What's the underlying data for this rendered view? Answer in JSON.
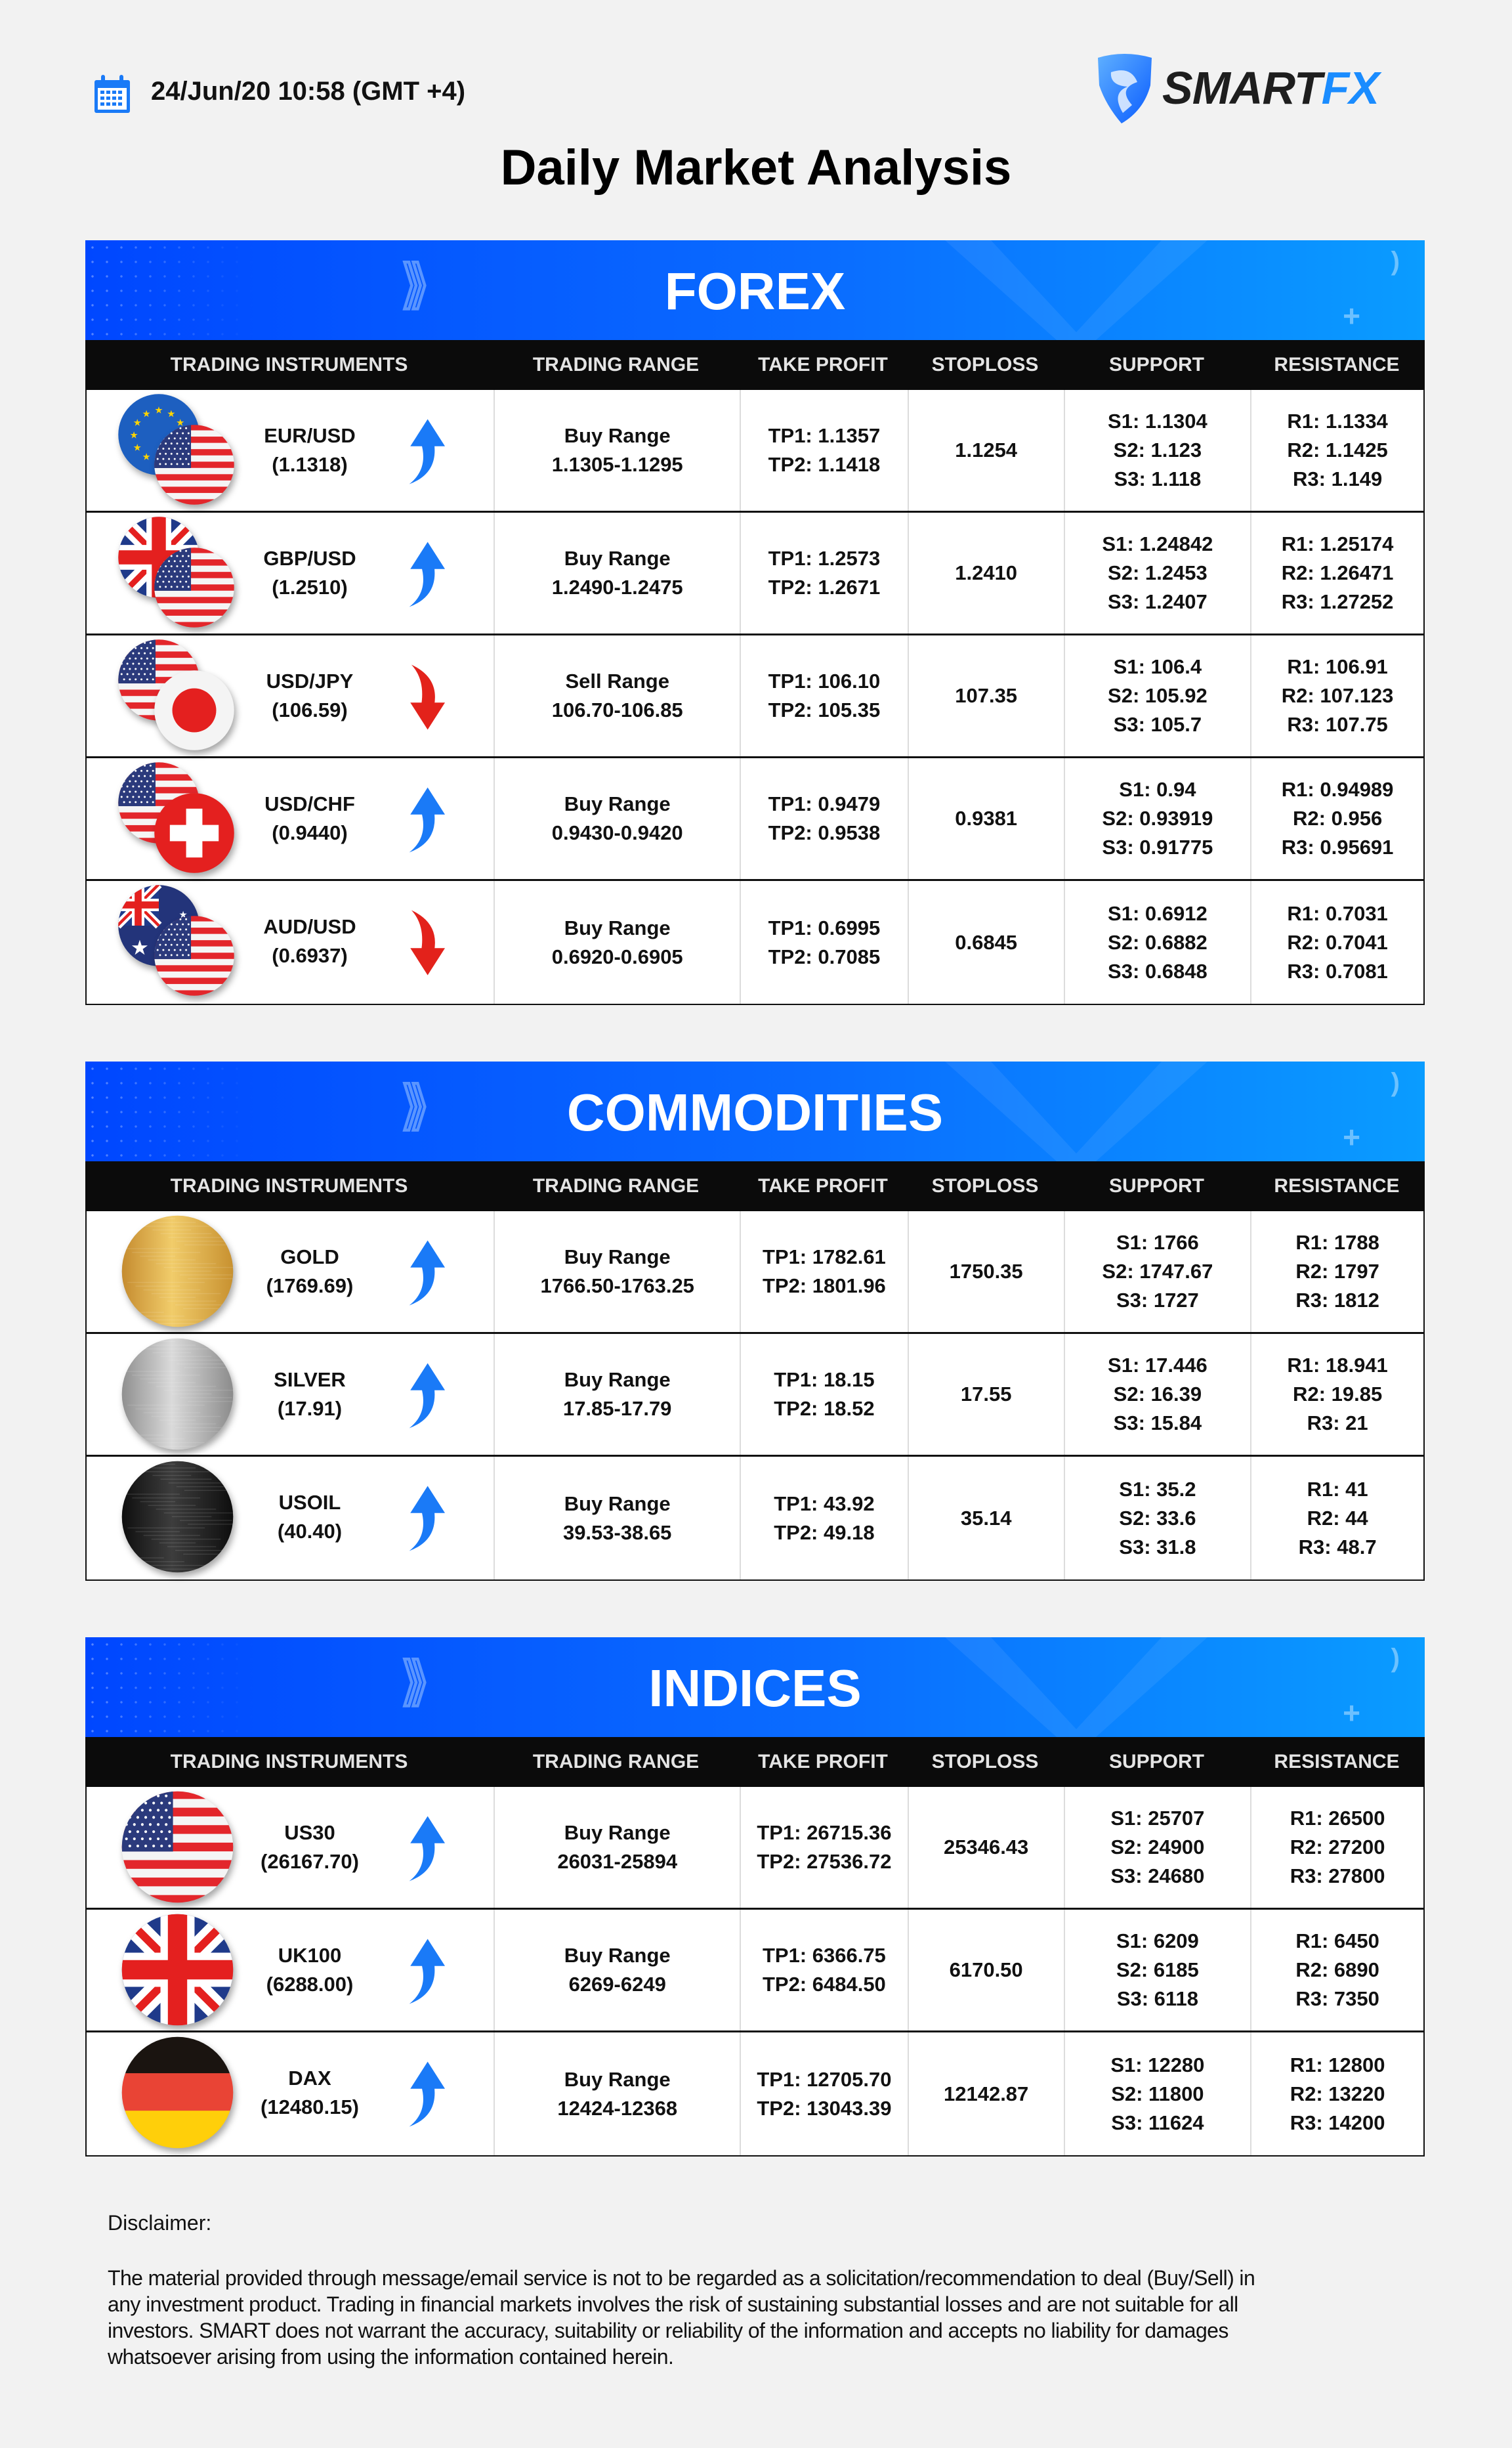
{
  "header": {
    "date": "24/Jun/20 10:58 (GMT +4)",
    "logo_text_1": "SMART",
    "logo_text_2": "FX",
    "title": "Daily Market Analysis"
  },
  "colors": {
    "banner_start": "#0047ff",
    "banner_end": "#0a9cff",
    "up": "#1a7af7",
    "down": "#e3221b",
    "header_bg": "#0b0b0b"
  },
  "sections": [
    {
      "title": "FOREX",
      "headers": [
        "TRADING INSTRUMENTS",
        "TRADING RANGE",
        "TAKE PROFIT",
        "STOPLOSS",
        "SUPPORT",
        "RESISTANCE"
      ],
      "rows": [
        {
          "icon": [
            "eu",
            "us"
          ],
          "name": "EUR/USD",
          "price": "(1.1318)",
          "direction": "up",
          "range_label": "Buy Range",
          "range": "1.1305-1.1295",
          "tp": [
            "TP1: 1.1357",
            "TP2: 1.1418"
          ],
          "stoploss": "1.1254",
          "support": [
            "S1: 1.1304",
            "S2: 1.123",
            "S3: 1.118"
          ],
          "resistance": [
            "R1: 1.1334",
            "R2: 1.1425",
            "R3: 1.149"
          ]
        },
        {
          "icon": [
            "uk",
            "us"
          ],
          "name": "GBP/USD",
          "price": "(1.2510)",
          "direction": "up",
          "range_label": "Buy Range",
          "range": "1.2490-1.2475",
          "tp": [
            "TP1: 1.2573",
            "TP2: 1.2671"
          ],
          "stoploss": "1.2410",
          "support": [
            "S1: 1.24842",
            "S2: 1.2453",
            "S3: 1.2407"
          ],
          "resistance": [
            "R1: 1.25174",
            "R2: 1.26471",
            "R3: 1.27252"
          ]
        },
        {
          "icon": [
            "us",
            "jp"
          ],
          "name": "USD/JPY",
          "price": "(106.59)",
          "direction": "down",
          "range_label": "Sell Range",
          "range": "106.70-106.85",
          "tp": [
            "TP1: 106.10",
            "TP2: 105.35"
          ],
          "stoploss": "107.35",
          "support": [
            "S1: 106.4",
            "S2: 105.92",
            "S3: 105.7"
          ],
          "resistance": [
            "R1: 106.91",
            "R2: 107.123",
            "R3: 107.75"
          ]
        },
        {
          "icon": [
            "us",
            "ch"
          ],
          "name": "USD/CHF",
          "price": "(0.9440)",
          "direction": "up",
          "range_label": "Buy Range",
          "range": "0.9430-0.9420",
          "tp": [
            "TP1: 0.9479",
            "TP2: 0.9538"
          ],
          "stoploss": "0.9381",
          "support": [
            "S1: 0.94",
            "S2: 0.93919",
            "S3: 0.91775"
          ],
          "resistance": [
            "R1: 0.94989",
            "R2: 0.956",
            "R3: 0.95691"
          ]
        },
        {
          "icon": [
            "au",
            "us"
          ],
          "name": "AUD/USD",
          "price": "(0.6937)",
          "direction": "down",
          "range_label": "Buy Range",
          "range": "0.6920-0.6905",
          "tp": [
            "TP1: 0.6995",
            "TP2: 0.7085"
          ],
          "stoploss": "0.6845",
          "support": [
            "S1: 0.6912",
            "S2: 0.6882",
            "S3: 0.6848"
          ],
          "resistance": [
            "R1: 0.7031",
            "R2: 0.7041",
            "R3: 0.7081"
          ]
        }
      ]
    },
    {
      "title": "COMMODITIES",
      "headers": [
        "TRADING INSTRUMENTS",
        "TRADING RANGE",
        "TAKE PROFIT",
        "STOPLOSS",
        "SUPPORT",
        "RESISTANCE"
      ],
      "rows": [
        {
          "icon": [
            "gold"
          ],
          "name": "GOLD",
          "price": "(1769.69)",
          "direction": "up",
          "range_label": "Buy Range",
          "range": "1766.50-1763.25",
          "tp": [
            "TP1: 1782.61",
            "TP2: 1801.96"
          ],
          "stoploss": "1750.35",
          "support": [
            "S1: 1766",
            "S2: 1747.67",
            "S3: 1727"
          ],
          "resistance": [
            "R1: 1788",
            "R2: 1797",
            "R3: 1812"
          ]
        },
        {
          "icon": [
            "silver"
          ],
          "name": "SILVER",
          "price": "(17.91)",
          "direction": "up",
          "range_label": "Buy Range",
          "range": "17.85-17.79",
          "tp": [
            "TP1: 18.15",
            "TP2: 18.52"
          ],
          "stoploss": "17.55",
          "support": [
            "S1: 17.446",
            "S2: 16.39",
            "S3: 15.84"
          ],
          "resistance": [
            "R1: 18.941",
            "R2: 19.85",
            "R3: 21"
          ]
        },
        {
          "icon": [
            "oil"
          ],
          "name": "USOIL",
          "price": "(40.40)",
          "direction": "up",
          "range_label": "Buy Range",
          "range": "39.53-38.65",
          "tp": [
            "TP1: 43.92",
            "TP2: 49.18"
          ],
          "stoploss": "35.14",
          "support": [
            "S1: 35.2",
            "S2: 33.6",
            "S3: 31.8"
          ],
          "resistance": [
            "R1: 41",
            "R2: 44",
            "R3: 48.7"
          ]
        }
      ]
    },
    {
      "title": "INDICES",
      "headers": [
        "TRADING INSTRUMENTS",
        "TRADING RANGE",
        "TAKE PROFIT",
        "STOPLOSS",
        "SUPPORT",
        "RESISTANCE"
      ],
      "rows": [
        {
          "icon": [
            "us"
          ],
          "name": "US30",
          "price": "(26167.70)",
          "direction": "up",
          "range_label": "Buy Range",
          "range": "26031-25894",
          "tp": [
            "TP1: 26715.36",
            "TP2: 27536.72"
          ],
          "stoploss": "25346.43",
          "support": [
            "S1: 25707",
            "S2: 24900",
            "S3: 24680"
          ],
          "resistance": [
            "R1: 26500",
            "R2: 27200",
            "R3: 27800"
          ]
        },
        {
          "icon": [
            "uk"
          ],
          "name": "UK100",
          "price": "(6288.00)",
          "direction": "up",
          "range_label": "Buy Range",
          "range": "6269-6249",
          "tp": [
            "TP1: 6366.75",
            "TP2: 6484.50"
          ],
          "stoploss": "6170.50",
          "support": [
            "S1: 6209",
            "S2: 6185",
            "S3: 6118"
          ],
          "resistance": [
            "R1: 6450",
            "R2: 6890",
            "R3: 7350"
          ]
        },
        {
          "icon": [
            "de"
          ],
          "name": "DAX",
          "price": "(12480.15)",
          "direction": "up",
          "range_label": "Buy Range",
          "range": "12424-12368",
          "tp": [
            "TP1: 12705.70",
            "TP2: 13043.39"
          ],
          "stoploss": "12142.87",
          "support": [
            "S1: 12280",
            "S2: 11800",
            "S3: 11624"
          ],
          "resistance": [
            "R1: 12800",
            "R2: 13220",
            "R3: 14200"
          ]
        }
      ]
    }
  ],
  "disclaimer": {
    "label": "Disclaimer:",
    "lines": [
      "The material provided through message/email service is not to be regarded  as a solicitation/recommendation  to deal (Buy/Sell) in",
      "any investment product.  Trading in financial markets involves the risk of sustaining substantial losses and are not suitable for all",
      "investors. SMART does not warrant the accuracy, suitability or reliability of the information and accepts  no liability for damages",
      "whatsoever arising from using the information contained herein."
    ]
  }
}
